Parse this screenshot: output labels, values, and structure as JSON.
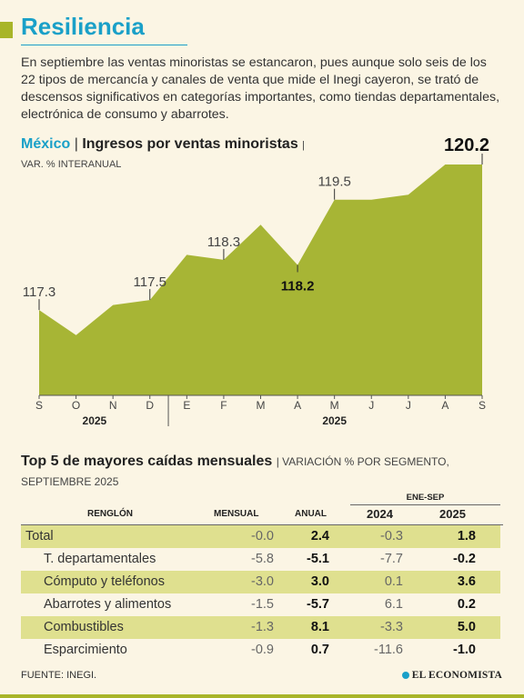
{
  "header": {
    "title": "Resiliencia",
    "intro": "En septiembre las ventas minoristas se estancaron, pues aunque solo seis de los 22 tipos de mercancía y canales de venta que mide el Inegi cayeron, se trató de descensos significativos en categorías importantes, como tiendas departamentales, electrónica de consumo y abarrotes."
  },
  "chart_head": {
    "country": "México",
    "separator": "|",
    "title": "Ingresos por ventas minoristas",
    "unit": "| VAR. % INTERANUAL"
  },
  "chart_data": {
    "type": "area",
    "title": "Ingresos por ventas minoristas",
    "x": [
      "S",
      "O",
      "N",
      "D",
      "E",
      "F",
      "M",
      "A",
      "M",
      "J",
      "J",
      "A",
      "S"
    ],
    "year_groups": [
      {
        "label": "2025",
        "months": 4
      },
      {
        "label": "2025",
        "months": 9
      }
    ],
    "values": [
      117.3,
      116.8,
      117.4,
      117.5,
      118.4,
      118.3,
      119.0,
      118.2,
      119.5,
      119.5,
      119.6,
      120.2,
      120.2
    ],
    "labels": [
      {
        "index": 0,
        "text": "117.3",
        "bold": false
      },
      {
        "index": 3,
        "text": "117.5",
        "bold": false
      },
      {
        "index": 5,
        "text": "118.3",
        "bold": false
      },
      {
        "index": 7,
        "text": "118.2",
        "bold": true
      },
      {
        "index": 8,
        "text": "119.5",
        "bold": false
      },
      {
        "index": 12,
        "text": "120.2",
        "bold": true
      }
    ],
    "ylim": [
      115.6,
      120.4
    ],
    "colors": {
      "area": "#a7b535",
      "axis": "#555555"
    }
  },
  "table": {
    "title": "Top 5 de mayores caídas mensuales",
    "subtitle": "| VARIACIÓN % POR SEGMENTO, SEPTIEMBRE 2025",
    "group_label": "ENE-SEP",
    "columns": [
      "RENGLÓN",
      "MENSUAL",
      "ANUAL",
      "2024",
      "2025"
    ],
    "rows": [
      {
        "label": "Total",
        "mensual": "-0.0",
        "anual": "2.4",
        "y2024": "-0.3",
        "y2025": "1.8"
      },
      {
        "label": "T. departamentales",
        "mensual": "-5.8",
        "anual": "-5.1",
        "y2024": "-7.7",
        "y2025": "-0.2"
      },
      {
        "label": "Cómputo y teléfonos",
        "mensual": "-3.0",
        "anual": "3.0",
        "y2024": "0.1",
        "y2025": "3.6"
      },
      {
        "label": "Abarrotes y alimentos",
        "mensual": "-1.5",
        "anual": "-5.7",
        "y2024": "6.1",
        "y2025": "0.2"
      },
      {
        "label": "Combustibles",
        "mensual": "-1.3",
        "anual": "8.1",
        "y2024": "-3.3",
        "y2025": "5.0"
      },
      {
        "label": "Esparcimiento",
        "mensual": "-0.9",
        "anual": "0.7",
        "y2024": "-11.6",
        "y2025": "-1.0"
      }
    ]
  },
  "footer": {
    "source": "FUENTE: INEGI.",
    "brand": "EL ECONOMISTA"
  }
}
